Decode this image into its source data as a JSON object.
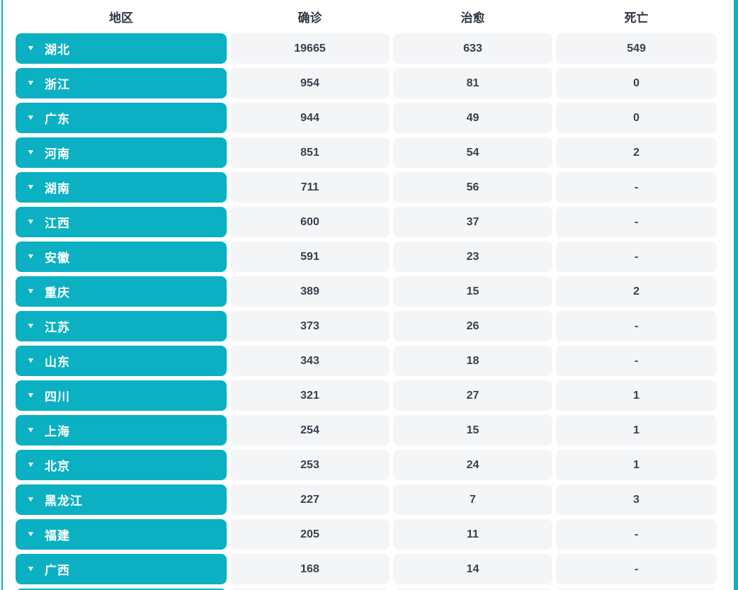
{
  "colors": {
    "accent": "#0bb1c2",
    "cell_bg": "#f4f5f7",
    "number_text": "#39414d",
    "header_text": "#2e3642",
    "button_text": "#ffffff"
  },
  "icons": {
    "expand_arrow": "▼"
  },
  "table": {
    "columns": [
      "地区",
      "确诊",
      "治愈",
      "死亡"
    ],
    "rows": [
      {
        "region": "湖北",
        "confirmed": "19665",
        "cured": "633",
        "deaths": "549"
      },
      {
        "region": "浙江",
        "confirmed": "954",
        "cured": "81",
        "deaths": "0"
      },
      {
        "region": "广东",
        "confirmed": "944",
        "cured": "49",
        "deaths": "0"
      },
      {
        "region": "河南",
        "confirmed": "851",
        "cured": "54",
        "deaths": "2"
      },
      {
        "region": "湖南",
        "confirmed": "711",
        "cured": "56",
        "deaths": "-"
      },
      {
        "region": "江西",
        "confirmed": "600",
        "cured": "37",
        "deaths": "-"
      },
      {
        "region": "安徽",
        "confirmed": "591",
        "cured": "23",
        "deaths": "-"
      },
      {
        "region": "重庆",
        "confirmed": "389",
        "cured": "15",
        "deaths": "2"
      },
      {
        "region": "江苏",
        "confirmed": "373",
        "cured": "26",
        "deaths": "-"
      },
      {
        "region": "山东",
        "confirmed": "343",
        "cured": "18",
        "deaths": "-"
      },
      {
        "region": "四川",
        "confirmed": "321",
        "cured": "27",
        "deaths": "1"
      },
      {
        "region": "上海",
        "confirmed": "254",
        "cured": "15",
        "deaths": "1"
      },
      {
        "region": "北京",
        "confirmed": "253",
        "cured": "24",
        "deaths": "1"
      },
      {
        "region": "黑龙江",
        "confirmed": "227",
        "cured": "7",
        "deaths": "3"
      },
      {
        "region": "福建",
        "confirmed": "205",
        "cured": "11",
        "deaths": "-"
      },
      {
        "region": "广西",
        "confirmed": "168",
        "cured": "14",
        "deaths": "-"
      }
    ],
    "next_row_peek": true
  }
}
